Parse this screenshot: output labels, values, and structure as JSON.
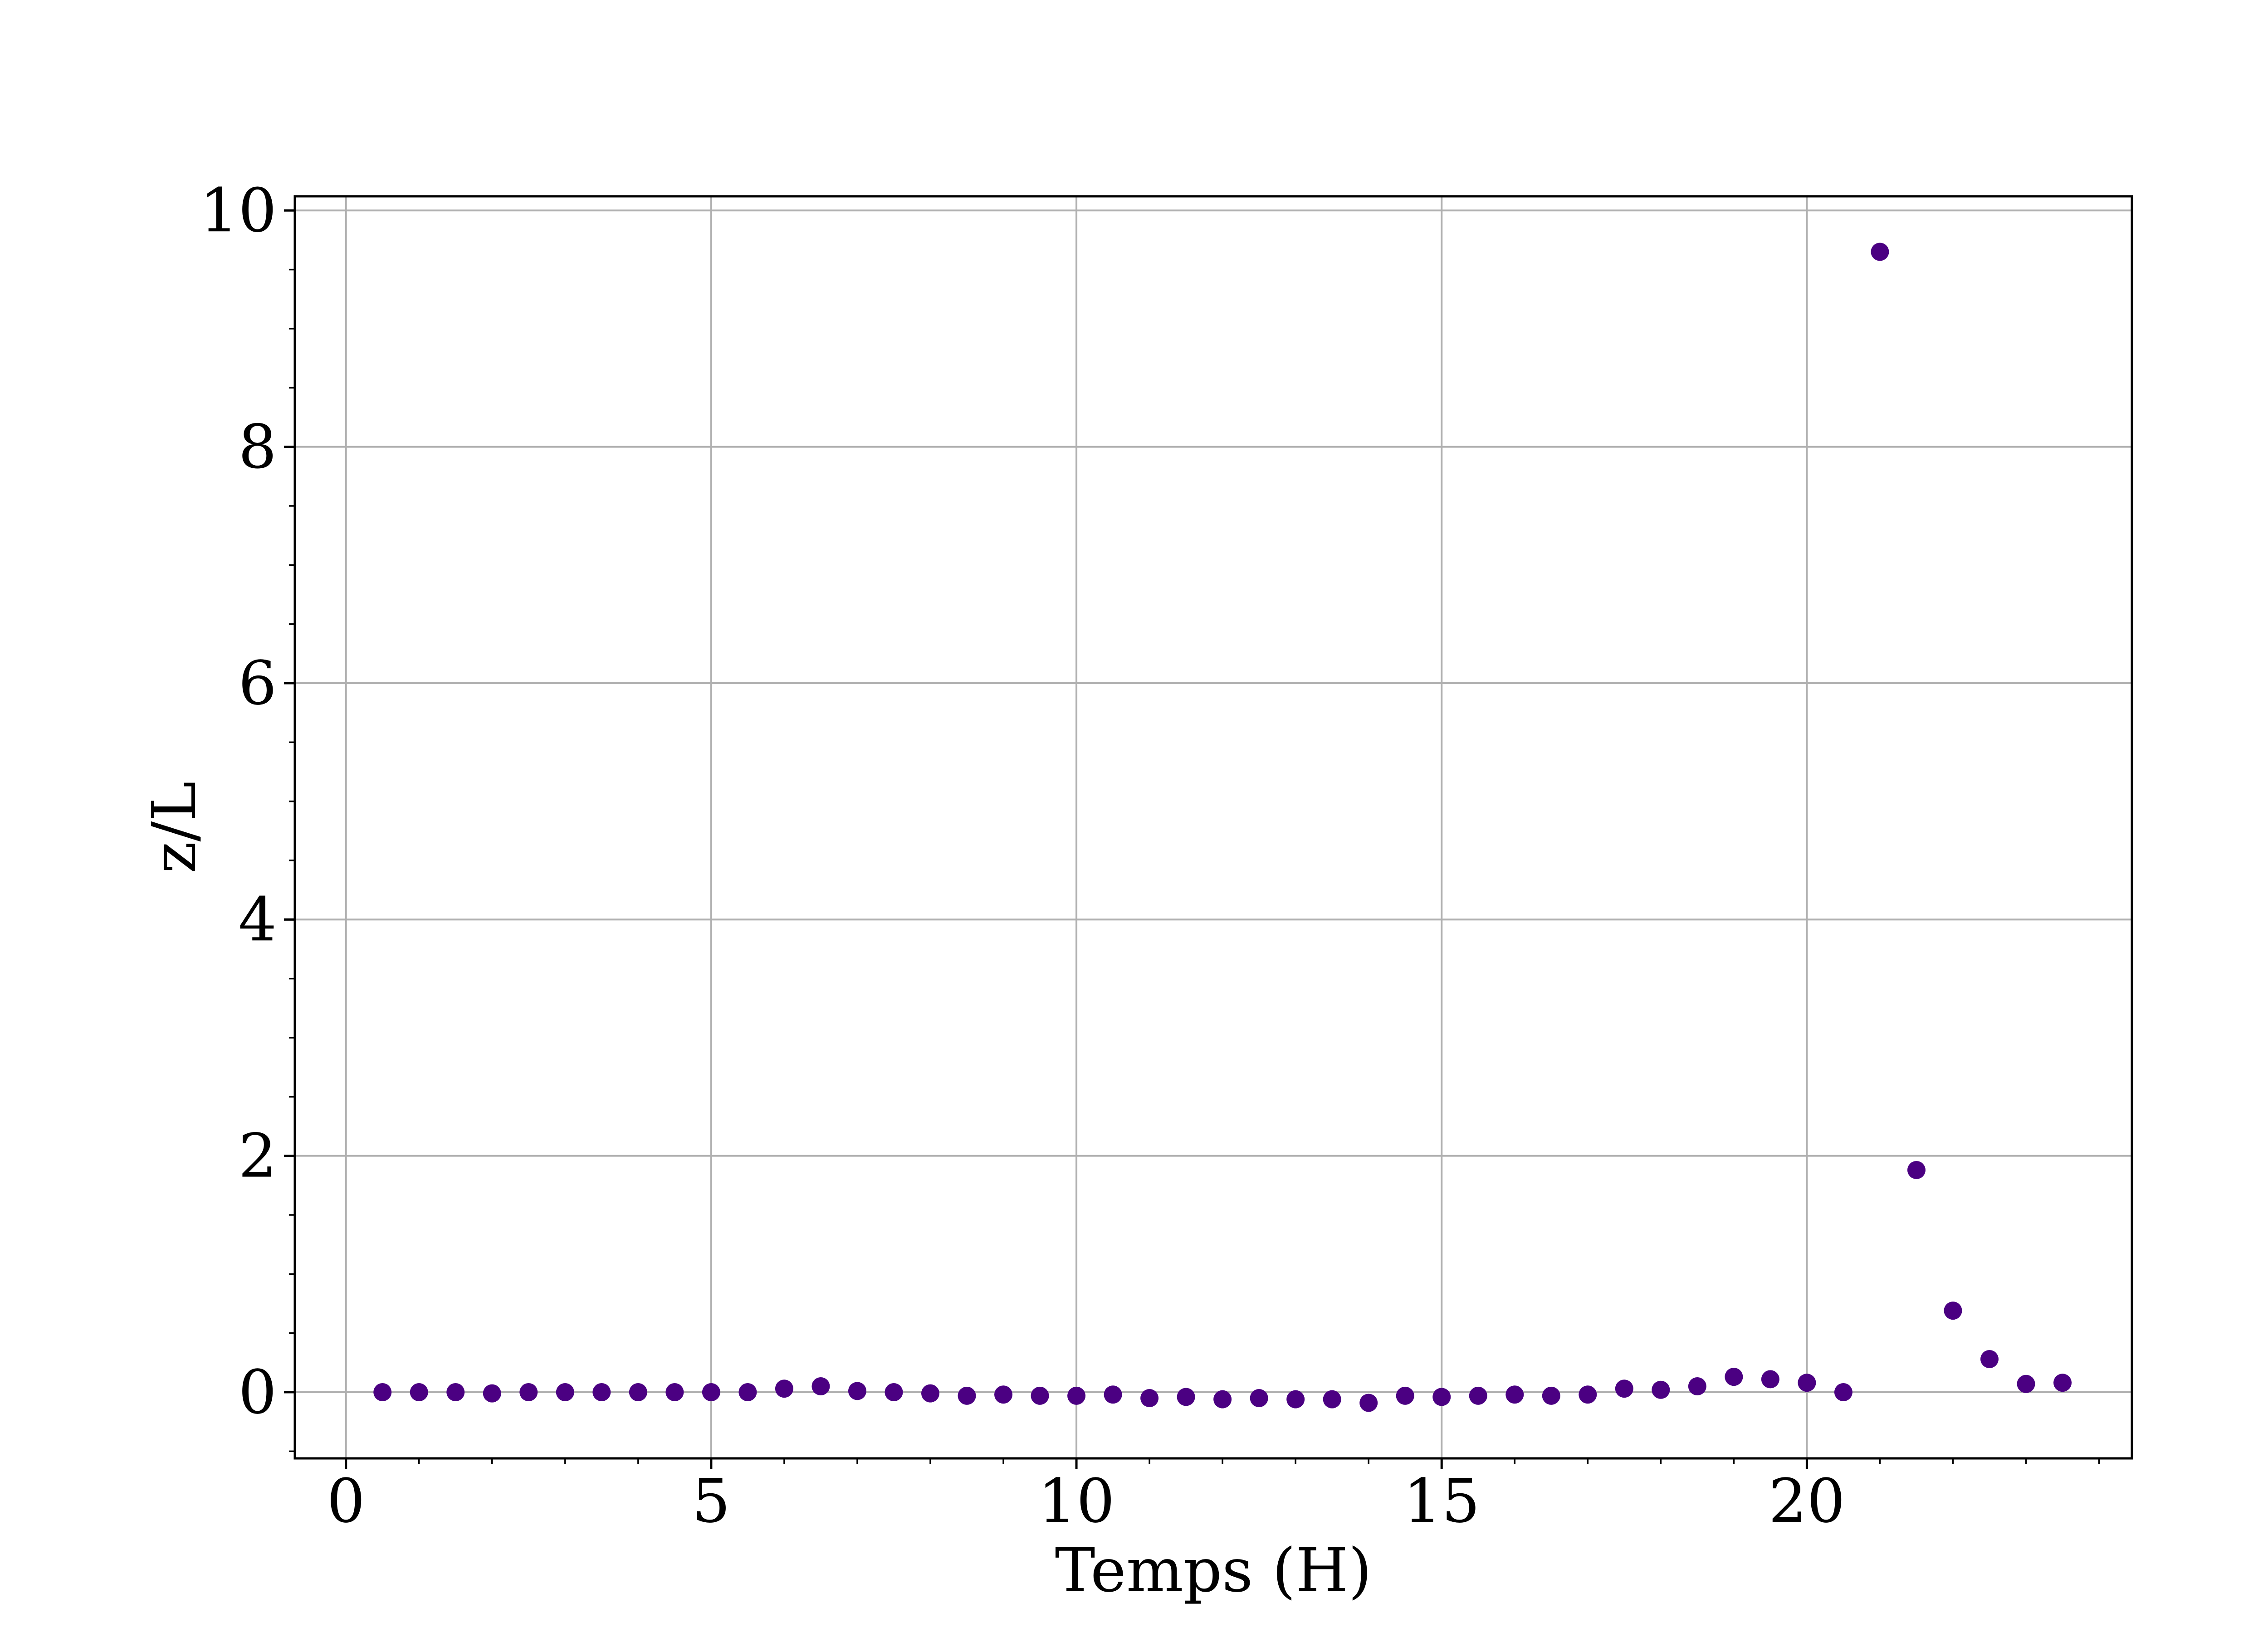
{
  "chart_data": {
    "type": "scatter",
    "title": "",
    "xlabel": "Temps (H)",
    "ylabel": "z/L",
    "xlim": [
      -0.7,
      24.45
    ],
    "ylim": [
      -0.56,
      10.12
    ],
    "xticks": [
      0,
      5,
      10,
      15,
      20
    ],
    "yticks": [
      0,
      2,
      4,
      6,
      8,
      10
    ],
    "x_tick_labels": [
      "0",
      "5",
      "10",
      "15",
      "20"
    ],
    "y_tick_labels": [
      "0",
      "2",
      "4",
      "6",
      "8",
      "10"
    ],
    "x_minor_step": 1,
    "y_minor_step": 0.5,
    "grid": true,
    "legend": "none",
    "marker_color": "#4B0082",
    "series": [
      {
        "points": [
          {
            "x": 0.5,
            "y": 0.0
          },
          {
            "x": 1.0,
            "y": 0.0
          },
          {
            "x": 1.5,
            "y": 0.0
          },
          {
            "x": 2.0,
            "y": -0.01
          },
          {
            "x": 2.5,
            "y": 0.0
          },
          {
            "x": 3.0,
            "y": 0.0
          },
          {
            "x": 3.5,
            "y": 0.0
          },
          {
            "x": 4.0,
            "y": 0.0
          },
          {
            "x": 4.5,
            "y": 0.0
          },
          {
            "x": 5.0,
            "y": 0.0
          },
          {
            "x": 5.5,
            "y": 0.0
          },
          {
            "x": 6.0,
            "y": 0.03
          },
          {
            "x": 6.5,
            "y": 0.05
          },
          {
            "x": 7.0,
            "y": 0.01
          },
          {
            "x": 7.5,
            "y": 0.0
          },
          {
            "x": 8.0,
            "y": -0.01
          },
          {
            "x": 8.5,
            "y": -0.03
          },
          {
            "x": 9.0,
            "y": -0.02
          },
          {
            "x": 9.5,
            "y": -0.03
          },
          {
            "x": 10.0,
            "y": -0.03
          },
          {
            "x": 10.5,
            "y": -0.02
          },
          {
            "x": 11.0,
            "y": -0.05
          },
          {
            "x": 11.5,
            "y": -0.04
          },
          {
            "x": 12.0,
            "y": -0.06
          },
          {
            "x": 12.5,
            "y": -0.05
          },
          {
            "x": 13.0,
            "y": -0.06
          },
          {
            "x": 13.5,
            "y": -0.06
          },
          {
            "x": 14.0,
            "y": -0.09
          },
          {
            "x": 14.5,
            "y": -0.03
          },
          {
            "x": 15.0,
            "y": -0.04
          },
          {
            "x": 15.5,
            "y": -0.03
          },
          {
            "x": 16.0,
            "y": -0.02
          },
          {
            "x": 16.5,
            "y": -0.03
          },
          {
            "x": 17.0,
            "y": -0.02
          },
          {
            "x": 17.5,
            "y": 0.03
          },
          {
            "x": 18.0,
            "y": 0.02
          },
          {
            "x": 18.5,
            "y": 0.05
          },
          {
            "x": 19.0,
            "y": 0.13
          },
          {
            "x": 19.5,
            "y": 0.11
          },
          {
            "x": 20.0,
            "y": 0.08
          },
          {
            "x": 20.5,
            "y": 0.0
          },
          {
            "x": 21.0,
            "y": 9.65
          },
          {
            "x": 21.5,
            "y": 1.88
          },
          {
            "x": 22.0,
            "y": 0.69
          },
          {
            "x": 22.5,
            "y": 0.28
          },
          {
            "x": 23.0,
            "y": 0.07
          },
          {
            "x": 23.5,
            "y": 0.08
          }
        ]
      }
    ]
  }
}
